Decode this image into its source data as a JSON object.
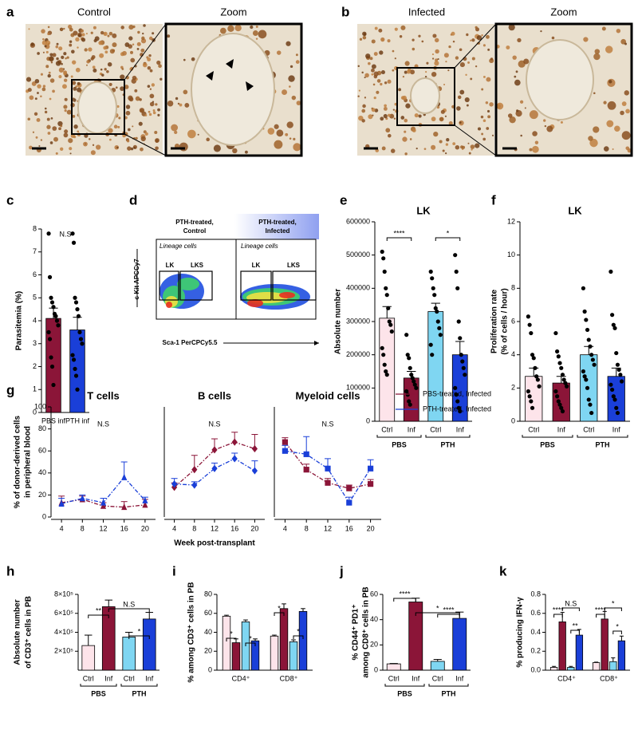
{
  "figure_panels": {
    "a": {
      "label": "a",
      "titles": [
        "Control",
        "Zoom"
      ]
    },
    "b": {
      "label": "b",
      "titles": [
        "Infected",
        "Zoom"
      ]
    },
    "d": {
      "label": "d",
      "plot_titles": [
        [
          "PTH-treated,",
          "Control"
        ],
        [
          "PTH-treated,",
          "Infected"
        ]
      ],
      "gate_header": [
        "Lineage cells",
        "Lineage cells"
      ],
      "gates": [
        [
          "LK",
          "LKS"
        ],
        [
          "LK",
          "LKS"
        ]
      ],
      "xlabel": "Sca-1 PerCPCy5.5",
      "ylabel": "c-Kit APCCy7"
    }
  },
  "chart_data": [
    {
      "panel": "c",
      "type": "bar",
      "ylabel": [
        "Parasitemia (%)"
      ],
      "categories": [
        "PBS inf",
        "PTH inf"
      ],
      "values": [
        4.1,
        3.6
      ],
      "errors": [
        0.45,
        0.55
      ],
      "colors": [
        "#8b1538",
        "#1a3fd8"
      ],
      "points": [
        [
          7.8,
          5.9,
          5.0,
          4.8,
          4.6,
          4.3,
          4.2,
          4.0,
          3.8,
          3.5,
          3.2,
          2.4,
          2.0,
          1.2
        ],
        [
          7.8,
          7.4,
          5.0,
          4.8,
          4.5,
          4.2,
          3.5,
          3.2,
          3.0,
          2.5,
          2.3,
          1.9,
          1.6,
          1.0
        ]
      ],
      "ylim": [
        0,
        8
      ],
      "yticks": [
        0,
        1,
        2,
        3,
        4,
        5,
        6,
        7,
        8
      ],
      "annotations": [
        "N.S"
      ]
    },
    {
      "panel": "e",
      "type": "bar",
      "title": "LK",
      "ylabel": [
        "Absolute number"
      ],
      "categories": [
        "Ctrl",
        "Inf",
        "Ctrl",
        "Inf"
      ],
      "groups": [
        "PBS",
        "PTH"
      ],
      "values": [
        310000,
        130000,
        330000,
        200000
      ],
      "errors": [
        35000,
        20000,
        25000,
        40000
      ],
      "colors": [
        "#fde4ea",
        "#8b1538",
        "#7fd6f2",
        "#1a3fd8"
      ],
      "points": [
        [
          510000,
          490000,
          450000,
          400000,
          380000,
          340000,
          300000,
          290000,
          270000,
          220000,
          200000,
          170000,
          150000,
          140000
        ],
        [
          260000,
          200000,
          190000,
          160000,
          140000,
          130000,
          120000,
          110000,
          100000,
          90000,
          80000,
          60000,
          50000
        ],
        [
          450000,
          430000,
          400000,
          380000,
          340000,
          330000,
          300000,
          280000,
          260000,
          230000,
          200000
        ],
        [
          500000,
          450000,
          400000,
          300000,
          250000,
          200000,
          180000,
          160000,
          140000,
          100000,
          80000,
          60000,
          40000,
          30000
        ]
      ],
      "ylim": [
        0,
        600000
      ],
      "yticks": [
        0,
        100000,
        200000,
        300000,
        400000,
        500000,
        600000
      ],
      "annotations": [
        "****",
        "*"
      ]
    },
    {
      "panel": "f",
      "type": "bar",
      "title": "LK",
      "ylabel": [
        "Proliferation rate",
        "(% of cells / hour)"
      ],
      "categories": [
        "Ctrl",
        "Inf",
        "Ctrl",
        "Inf"
      ],
      "groups": [
        "PBS",
        "PTH"
      ],
      "values": [
        2.7,
        2.3,
        4.0,
        2.7
      ],
      "errors": [
        0.5,
        0.4,
        0.5,
        0.5
      ],
      "colors": [
        "#fde4ea",
        "#8b1538",
        "#7fd6f2",
        "#1a3fd8"
      ],
      "points": [
        [
          6.3,
          5.8,
          5.3,
          4.0,
          3.8,
          3.2,
          2.7,
          2.5,
          2.1,
          1.8,
          1.5,
          1.2,
          0.8
        ],
        [
          5.3,
          4.2,
          3.9,
          3.5,
          3.2,
          2.8,
          2.5,
          2.3,
          2.1,
          1.8,
          1.5,
          1.2,
          1.0,
          0.8,
          0.6
        ],
        [
          8.0,
          6.6,
          6.1,
          5.5,
          4.9,
          4.5,
          4.0,
          3.7,
          3.4,
          3.0,
          2.7,
          2.5,
          2.0,
          1.3,
          1.0,
          0.5
        ],
        [
          9.0,
          6.4,
          5.8,
          5.6,
          4.1,
          3.4,
          3.1,
          2.8,
          2.4,
          2.2,
          1.9,
          1.5,
          1.3,
          0.8,
          0.5
        ]
      ],
      "ylim": [
        0,
        12
      ],
      "yticks": [
        0,
        2,
        4,
        6,
        8,
        10,
        12
      ]
    },
    {
      "panel": "g",
      "type": "line",
      "title": "T cells",
      "ylabel": [
        "% of donor-derived cells",
        "in peripheral blood"
      ],
      "marker": "triangle",
      "x": [
        4,
        8,
        12,
        16,
        20
      ],
      "xlim": [
        2,
        22
      ],
      "xticks": [
        4,
        8,
        12,
        16,
        20
      ],
      "ylim": [
        0,
        100
      ],
      "yticks": [
        0,
        20,
        40,
        60,
        80,
        100
      ],
      "annotations": [
        "N.S"
      ],
      "series": [
        {
          "name": "PBS-treated, Infected",
          "color": "#8b1538",
          "values": [
            13,
            16,
            10,
            9,
            11
          ],
          "errors": [
            6,
            3,
            3,
            5,
            5
          ]
        },
        {
          "name": "PTH-treated, Infected",
          "color": "#1a3fd8",
          "values": [
            12,
            17,
            13,
            36,
            15
          ],
          "errors": [
            5,
            3,
            4,
            14,
            3
          ]
        }
      ]
    },
    {
      "type": "line",
      "title": "B cells",
      "xlabel": "Week post-transplant",
      "marker": "diamond",
      "x": [
        4,
        8,
        12,
        16,
        20
      ],
      "xlim": [
        2,
        22
      ],
      "xticks": [
        4,
        8,
        12,
        16,
        20
      ],
      "ylim": [
        0,
        100
      ],
      "annotations": [
        "N.S"
      ],
      "series": [
        {
          "name": "PBS-treated, Infected",
          "color": "#8b1538",
          "values": [
            27,
            43,
            61,
            68,
            62
          ],
          "errors": [
            4,
            13,
            10,
            9,
            13
          ]
        },
        {
          "name": "PTH-treated, Infected",
          "color": "#1a3fd8",
          "values": [
            30,
            29,
            44,
            53,
            42
          ],
          "errors": [
            5,
            3,
            5,
            5,
            9
          ]
        }
      ]
    },
    {
      "type": "line",
      "title": "Myeloid cells",
      "marker": "square",
      "x": [
        4,
        8,
        12,
        16,
        20
      ],
      "xlim": [
        2,
        22
      ],
      "xticks": [
        4,
        8,
        12,
        16,
        20
      ],
      "ylim": [
        0,
        100
      ],
      "annotations": [
        "N.S"
      ],
      "legend": "right",
      "series": [
        {
          "name": "PBS-treated, Infected",
          "color": "#8b1538",
          "values": [
            68,
            43,
            31,
            26,
            30
          ],
          "errors": [
            4,
            5,
            4,
            3,
            4
          ]
        },
        {
          "name": "PTH-treated, Infected",
          "color": "#1a3fd8",
          "values": [
            60,
            57,
            44,
            13,
            44
          ],
          "errors": [
            5,
            16,
            9,
            5,
            8
          ]
        }
      ]
    },
    {
      "panel": "h",
      "type": "bar",
      "ylabel": [
        "Absolute number",
        "of CD3⁺ cells in PB"
      ],
      "categories": [
        "Ctrl",
        "Inf",
        "Ctrl",
        "Inf"
      ],
      "groups": [
        "PBS",
        "PTH"
      ],
      "values": [
        260000,
        670000,
        350000,
        540000
      ],
      "errors": [
        110000,
        70000,
        50000,
        70000
      ],
      "colors": [
        "#fde4ea",
        "#8b1538",
        "#7fd6f2",
        "#1a3fd8"
      ],
      "ylim": [
        0,
        800000
      ],
      "yticks": [
        {
          "value": 200000,
          "label": "2×10⁵"
        },
        {
          "value": 400000,
          "label": "4×10⁵"
        },
        {
          "value": 600000,
          "label": "6×10⁵"
        },
        {
          "value": 800000,
          "label": "8×10⁵"
        }
      ],
      "annotations": [
        "**",
        "N.S",
        "*"
      ]
    },
    {
      "panel": "i",
      "type": "bar",
      "ylabel": [
        "% among CD3⁺ cells in PB"
      ],
      "categories": [
        "CD4⁺",
        "CD8⁺"
      ],
      "series": [
        {
          "color": "#fde4ea",
          "values": [
            57,
            36
          ],
          "errors": [
            1,
            1
          ]
        },
        {
          "color": "#8b1538",
          "values": [
            29,
            65
          ],
          "errors": [
            4,
            5
          ]
        },
        {
          "color": "#7fd6f2",
          "values": [
            51,
            30
          ],
          "errors": [
            2,
            2
          ]
        },
        {
          "color": "#1a3fd8",
          "values": [
            31,
            62
          ],
          "errors": [
            2,
            3
          ]
        }
      ],
      "ylim": [
        0,
        80
      ],
      "yticks": [
        0,
        20,
        40,
        60,
        80
      ],
      "annotations": [
        "*",
        "*",
        "*",
        "*"
      ]
    },
    {
      "panel": "j",
      "type": "bar",
      "ylabel": [
        "% CD44⁺ PD1⁺",
        "among CD8⁺ cells in PB"
      ],
      "categories": [
        "Ctrl",
        "Inf",
        "Ctrl",
        "Inf"
      ],
      "groups": [
        "PBS",
        "PTH"
      ],
      "values": [
        5,
        54,
        7,
        41
      ],
      "errors": [
        0.3,
        3,
        1.5,
        5
      ],
      "colors": [
        "#fde4ea",
        "#8b1538",
        "#7fd6f2",
        "#1a3fd8"
      ],
      "ylim": [
        0,
        60
      ],
      "yticks": [
        0,
        20,
        40,
        60
      ],
      "annotations": [
        "****",
        "*",
        "****"
      ]
    },
    {
      "panel": "k",
      "type": "bar",
      "ylabel": [
        "% producing IFN-γ"
      ],
      "categories": [
        "CD4⁺",
        "CD8⁺"
      ],
      "series": [
        {
          "color": "#fde4ea",
          "values": [
            0.03,
            0.08
          ],
          "errors": [
            0.01,
            0.005
          ]
        },
        {
          "color": "#8b1538",
          "values": [
            0.51,
            0.54
          ],
          "errors": [
            0.1,
            0.08
          ]
        },
        {
          "color": "#7fd6f2",
          "values": [
            0.03,
            0.09
          ],
          "errors": [
            0.01,
            0.04
          ]
        },
        {
          "color": "#1a3fd8",
          "values": [
            0.37,
            0.31
          ],
          "errors": [
            0.06,
            0.05
          ]
        }
      ],
      "ylim": [
        0,
        0.8
      ],
      "yticks": [
        {
          "value": 0,
          "label": "0.0"
        },
        0.2,
        0.4,
        0.6,
        0.8
      ],
      "annotations": [
        "****",
        "N.S",
        "**",
        "****",
        "*",
        "*"
      ]
    }
  ]
}
